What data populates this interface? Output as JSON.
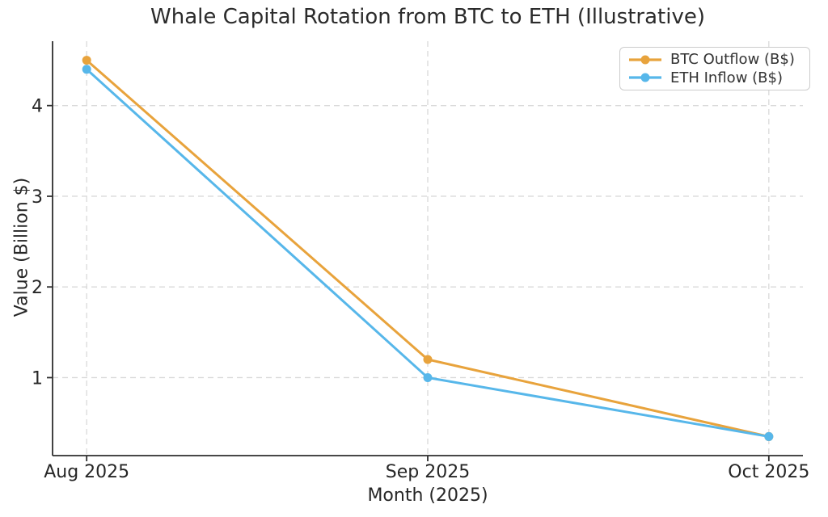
{
  "chart_data": {
    "type": "line",
    "title": "Whale Capital Rotation from BTC to ETH (Illustrative)",
    "xlabel": "Month (2025)",
    "ylabel": "Value (Billion $)",
    "categories": [
      "Aug 2025",
      "Sep 2025",
      "Oct 2025"
    ],
    "series": [
      {
        "name": "BTC Outflow (B$)",
        "color": "#E8A33C",
        "values": [
          4.5,
          1.2,
          0.35
        ]
      },
      {
        "name": "ETH Inflow (B$)",
        "color": "#57B7EA",
        "values": [
          4.4,
          1.0,
          0.35
        ]
      }
    ],
    "yticks": [
      1,
      2,
      3,
      4
    ],
    "ylim": [
      0.14,
      4.71
    ],
    "xlim": [
      -0.1,
      2.1
    ],
    "grid": true,
    "grid_style": "dashed",
    "legend_position": "upper right",
    "marker": "circle"
  }
}
